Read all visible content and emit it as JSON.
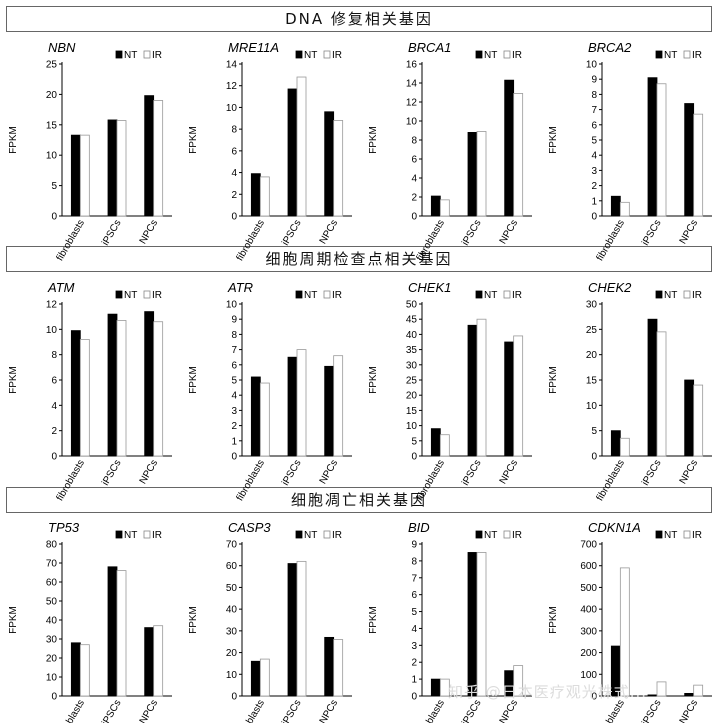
{
  "sections": [
    {
      "title": "DNA 修复相关基因"
    },
    {
      "title": "细胞周期检查点相关基因"
    },
    {
      "title": "细胞凋亡相关基因"
    }
  ],
  "legend": {
    "nt": "NT",
    "ir": "IR"
  },
  "colors": {
    "nt": "#000000",
    "ir": "#ffffff",
    "outline": "#000000"
  },
  "watermark": "知乎 @日本医疗观光株式...",
  "chart_data": [
    {
      "type": "bar",
      "title": "NBN",
      "ylabel": "FPKM",
      "categories": [
        "fibroblasts",
        "iPSCs",
        "NPCs"
      ],
      "ylim": [
        0,
        25
      ],
      "ticks": [
        0,
        5,
        10,
        15,
        20,
        25
      ],
      "series": [
        {
          "name": "NT",
          "values": [
            13.3,
            15.8,
            19.8
          ]
        },
        {
          "name": "IR",
          "values": [
            13.3,
            15.7,
            19.0
          ]
        }
      ]
    },
    {
      "type": "bar",
      "title": "MRE11A",
      "ylabel": "FPKM",
      "categories": [
        "fibroblasts",
        "iPSCs",
        "NPCs"
      ],
      "ylim": [
        0,
        14
      ],
      "ticks": [
        0,
        2,
        4,
        6,
        8,
        10,
        12,
        14
      ],
      "series": [
        {
          "name": "NT",
          "values": [
            3.9,
            11.7,
            9.6
          ]
        },
        {
          "name": "IR",
          "values": [
            3.6,
            12.8,
            8.8
          ]
        }
      ]
    },
    {
      "type": "bar",
      "title": "BRCA1",
      "ylabel": "FPKM",
      "categories": [
        "fibroblasts",
        "iPSCs",
        "NPCs"
      ],
      "ylim": [
        0,
        16
      ],
      "ticks": [
        0,
        2,
        4,
        6,
        8,
        10,
        12,
        14,
        16
      ],
      "series": [
        {
          "name": "NT",
          "values": [
            2.1,
            8.8,
            14.3
          ]
        },
        {
          "name": "IR",
          "values": [
            1.7,
            8.9,
            12.9
          ]
        }
      ]
    },
    {
      "type": "bar",
      "title": "BRCA2",
      "ylabel": "FPKM",
      "categories": [
        "fibroblasts",
        "iPSCs",
        "NPCs"
      ],
      "ylim": [
        0,
        10
      ],
      "ticks": [
        0,
        1,
        2,
        3,
        4,
        5,
        6,
        7,
        8,
        9,
        10
      ],
      "series": [
        {
          "name": "NT",
          "values": [
            1.3,
            9.1,
            7.4
          ]
        },
        {
          "name": "IR",
          "values": [
            0.9,
            8.7,
            6.7
          ]
        }
      ]
    },
    {
      "type": "bar",
      "title": "ATM",
      "ylabel": "FPKM",
      "categories": [
        "fibroblasts",
        "iPSCs",
        "NPCs"
      ],
      "ylim": [
        0,
        12
      ],
      "ticks": [
        0,
        2,
        4,
        6,
        8,
        10,
        12
      ],
      "series": [
        {
          "name": "NT",
          "values": [
            9.9,
            11.2,
            11.4
          ]
        },
        {
          "name": "IR",
          "values": [
            9.2,
            10.7,
            10.6
          ]
        }
      ]
    },
    {
      "type": "bar",
      "title": "ATR",
      "ylabel": "FPKM",
      "categories": [
        "fibroblasts",
        "iPSCs",
        "NPCs"
      ],
      "ylim": [
        0,
        10
      ],
      "ticks": [
        0,
        1,
        2,
        3,
        4,
        5,
        6,
        7,
        8,
        9,
        10
      ],
      "series": [
        {
          "name": "NT",
          "values": [
            5.2,
            6.5,
            5.9
          ]
        },
        {
          "name": "IR",
          "values": [
            4.8,
            7.0,
            6.6
          ]
        }
      ]
    },
    {
      "type": "bar",
      "title": "CHEK1",
      "ylabel": "FPKM",
      "categories": [
        "fibroblasts",
        "iPSCs",
        "NPCs"
      ],
      "ylim": [
        0,
        50
      ],
      "ticks": [
        0,
        5,
        10,
        15,
        20,
        25,
        30,
        35,
        40,
        45,
        50
      ],
      "series": [
        {
          "name": "NT",
          "values": [
            9.0,
            43.0,
            37.5
          ]
        },
        {
          "name": "IR",
          "values": [
            7.0,
            45.0,
            39.5
          ]
        }
      ]
    },
    {
      "type": "bar",
      "title": "CHEK2",
      "ylabel": "FPKM",
      "categories": [
        "fibroblasts",
        "iPSCs",
        "NPCs"
      ],
      "ylim": [
        0,
        30
      ],
      "ticks": [
        0,
        5,
        10,
        15,
        20,
        25,
        30
      ],
      "series": [
        {
          "name": "NT",
          "values": [
            5.0,
            27.0,
            15.0
          ]
        },
        {
          "name": "IR",
          "values": [
            3.5,
            24.5,
            14.0
          ]
        }
      ]
    },
    {
      "type": "bar",
      "title": "TP53",
      "ylabel": "FPKM",
      "categories": [
        "fibroblasts",
        "iPSCs",
        "NPCs"
      ],
      "ylim": [
        0,
        80
      ],
      "ticks": [
        0,
        10,
        20,
        30,
        40,
        50,
        60,
        70,
        80
      ],
      "series": [
        {
          "name": "NT",
          "values": [
            28,
            68,
            36
          ]
        },
        {
          "name": "IR",
          "values": [
            27,
            66,
            37
          ]
        }
      ]
    },
    {
      "type": "bar",
      "title": "CASP3",
      "ylabel": "FPKM",
      "categories": [
        "fibroblasts",
        "iPSCs",
        "NPCs"
      ],
      "ylim": [
        0,
        70
      ],
      "ticks": [
        0,
        10,
        20,
        30,
        40,
        50,
        60,
        70
      ],
      "series": [
        {
          "name": "NT",
          "values": [
            16,
            61,
            27
          ]
        },
        {
          "name": "IR",
          "values": [
            17,
            62,
            26
          ]
        }
      ]
    },
    {
      "type": "bar",
      "title": "BID",
      "ylabel": "FPKM",
      "categories": [
        "fibroblasts",
        "iPSCs",
        "NPCs"
      ],
      "ylim": [
        0,
        9
      ],
      "ticks": [
        0,
        1,
        2,
        3,
        4,
        5,
        6,
        7,
        8,
        9
      ],
      "series": [
        {
          "name": "NT",
          "values": [
            1.0,
            8.5,
            1.5
          ]
        },
        {
          "name": "IR",
          "values": [
            1.0,
            8.5,
            1.8
          ]
        }
      ]
    },
    {
      "type": "bar",
      "title": "CDKN1A",
      "ylabel": "FPKM",
      "categories": [
        "fibroblasts",
        "iPSCs",
        "NPCs"
      ],
      "ylim": [
        0,
        700
      ],
      "ticks": [
        0,
        100,
        200,
        300,
        400,
        500,
        600,
        700
      ],
      "series": [
        {
          "name": "NT",
          "values": [
            230,
            5,
            12
          ]
        },
        {
          "name": "IR",
          "values": [
            590,
            65,
            50
          ]
        }
      ]
    }
  ]
}
